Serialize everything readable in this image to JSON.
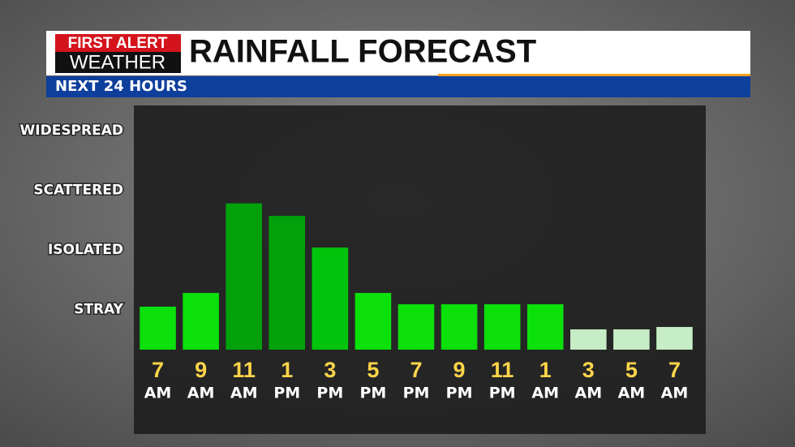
{
  "logo": {
    "line1": "FIRST ALERT",
    "line2": "WEATHER"
  },
  "chart_data": {
    "type": "bar",
    "title": "RAINFALL FORECAST",
    "subtitle": "NEXT 24 HOURS",
    "categories": [
      "7",
      "9",
      "11",
      "1",
      "3",
      "5",
      "7",
      "9",
      "11",
      "1",
      "3",
      "5",
      "7"
    ],
    "category_periods": [
      "AM",
      "AM",
      "AM",
      "PM",
      "PM",
      "PM",
      "PM",
      "PM",
      "PM",
      "AM",
      "AM",
      "AM",
      "AM"
    ],
    "values": [
      1.05,
      1.28,
      2.78,
      2.57,
      2.04,
      1.28,
      1.09,
      1.09,
      1.09,
      1.09,
      0.67,
      0.67,
      0.71
    ],
    "colors": [
      "#0be00b",
      "#0be00b",
      "#00a10a",
      "#00a10a",
      "#00c40b",
      "#0be00b",
      "#0be00b",
      "#0be00b",
      "#0be00b",
      "#0be00b",
      "#c6edc6",
      "#c6edc6",
      "#c6edc6"
    ],
    "ylim": [
      0.33,
      4.42
    ],
    "yticks": [
      {
        "value": 1,
        "label": "STRAY"
      },
      {
        "value": 2,
        "label": "ISOLATED"
      },
      {
        "value": 3,
        "label": "SCATTERED"
      },
      {
        "value": 4,
        "label": "WIDESPREAD"
      }
    ],
    "grid": false
  }
}
